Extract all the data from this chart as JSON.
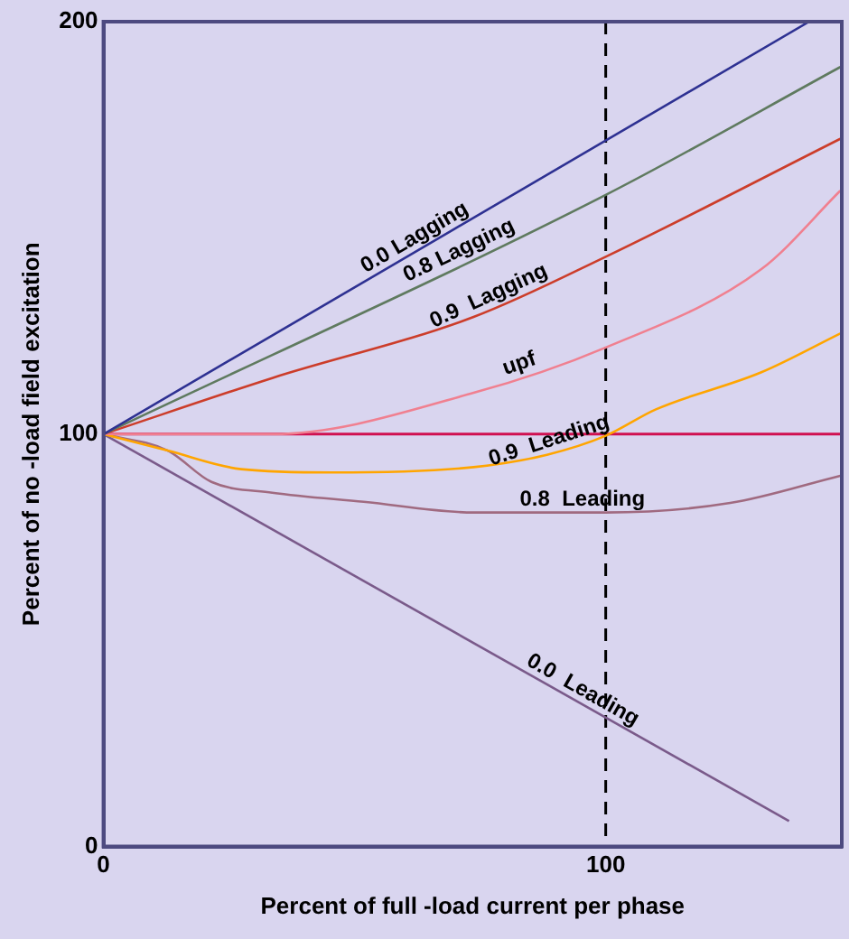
{
  "chart_data": {
    "type": "line",
    "xlabel": "Percent of full -load current per phase",
    "ylabel": "Percent of no -load field excitation",
    "xlim": [
      0,
      147
    ],
    "ylim": [
      0,
      200
    ],
    "xticks": [
      0,
      100
    ],
    "yticks": [
      0,
      100,
      200
    ],
    "grid": false,
    "legend": false,
    "marker": "none",
    "line_style": "solid",
    "series": [
      {
        "name": "0.0 Lagging",
        "color": "#2e3192",
        "x": [
          0,
          140.5
        ],
        "values": [
          100,
          200
        ]
      },
      {
        "name": "0.8 Lagging",
        "color": "#5f7a5f",
        "x": [
          0,
          100,
          146.7
        ],
        "values": [
          100,
          158,
          189
        ]
      },
      {
        "name": "0.9  Lagging",
        "color": "#cc3d2a",
        "x": [
          0,
          33.6,
          73.7,
          100,
          146.7
        ],
        "values": [
          100,
          113.6,
          128.4,
          143,
          171.6
        ]
      },
      {
        "name": "upf",
        "color": "#f08090",
        "x": [
          0,
          33.6,
          73.7,
          100,
          131,
          146.7
        ],
        "values": [
          100,
          100,
          110,
          121,
          140,
          159
        ]
      },
      {
        "name": "0.9  Leading",
        "color": "#ffa500",
        "x": [
          0,
          12.8,
          27.4,
          45.6,
          73.7,
          88.3,
          100,
          110,
          131,
          146.7
        ],
        "values": [
          100,
          96,
          91.5,
          90.7,
          92,
          95,
          99.6,
          106,
          115,
          124.4
        ]
      },
      {
        "name": "0.8  Leading",
        "color": "#a06a80",
        "x": [
          0,
          12.8,
          21.5,
          33.6,
          51.8,
          73.7,
          100,
          124.8,
          146.7
        ],
        "values": [
          100,
          96,
          88.4,
          85.8,
          83.6,
          81,
          81,
          83.3,
          89.9
        ]
      },
      {
        "name": "0.0  Leading",
        "color": "#7a5a8a",
        "x": [
          0,
          136.5
        ],
        "values": [
          100,
          6.2
        ]
      }
    ],
    "ref_lines": [
      {
        "axis": "y",
        "value": 100,
        "color": "#d01050"
      },
      {
        "axis": "x",
        "value": 100,
        "color": "#000000",
        "line_style": "dashed"
      }
    ]
  }
}
